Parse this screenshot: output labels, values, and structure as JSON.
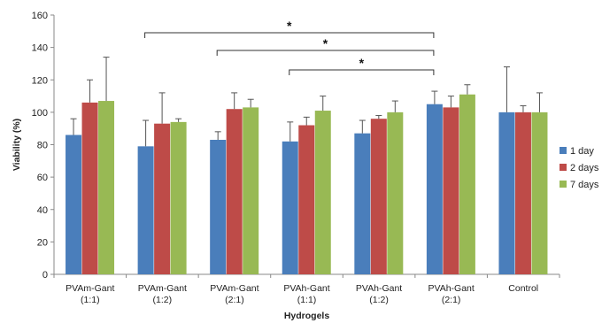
{
  "chart_data": {
    "type": "bar",
    "xlabel": "Hydrogels",
    "ylabel": "Viability (%)",
    "ylim": [
      0,
      160
    ],
    "yticks": [
      0,
      20,
      40,
      60,
      80,
      100,
      120,
      140,
      160
    ],
    "categories": [
      [
        "PVAm-Gant",
        "(1:1)"
      ],
      [
        "PVAm-Gant",
        "(1:2)"
      ],
      [
        "PVAm-Gant",
        "(2:1)"
      ],
      [
        "PVAh-Gant",
        "(1:1)"
      ],
      [
        "PVAh-Gant",
        "(1:2)"
      ],
      [
        "PVAh-Gant",
        "(2:1)"
      ],
      [
        "Control"
      ]
    ],
    "series": [
      {
        "name": "1 day",
        "color": "#4a7ebb",
        "values": [
          86,
          79,
          83,
          82,
          87,
          105,
          100
        ],
        "errors": [
          10,
          16,
          5,
          12,
          8,
          8,
          28
        ]
      },
      {
        "name": "2 days",
        "color": "#be4b48",
        "values": [
          106,
          93,
          102,
          92,
          96,
          103,
          100
        ],
        "errors": [
          14,
          19,
          10,
          5,
          2,
          7,
          4
        ]
      },
      {
        "name": "7 days",
        "color": "#98b954",
        "values": [
          107,
          94,
          103,
          101,
          100,
          111,
          100
        ],
        "errors": [
          27,
          2,
          5,
          9,
          7,
          6,
          12
        ]
      }
    ],
    "legend_position": "right",
    "significance": [
      {
        "from": 1,
        "to": 5,
        "label": "*"
      },
      {
        "from": 2,
        "to": 5,
        "label": "*"
      },
      {
        "from": 3,
        "to": 5,
        "label": "*"
      }
    ]
  }
}
